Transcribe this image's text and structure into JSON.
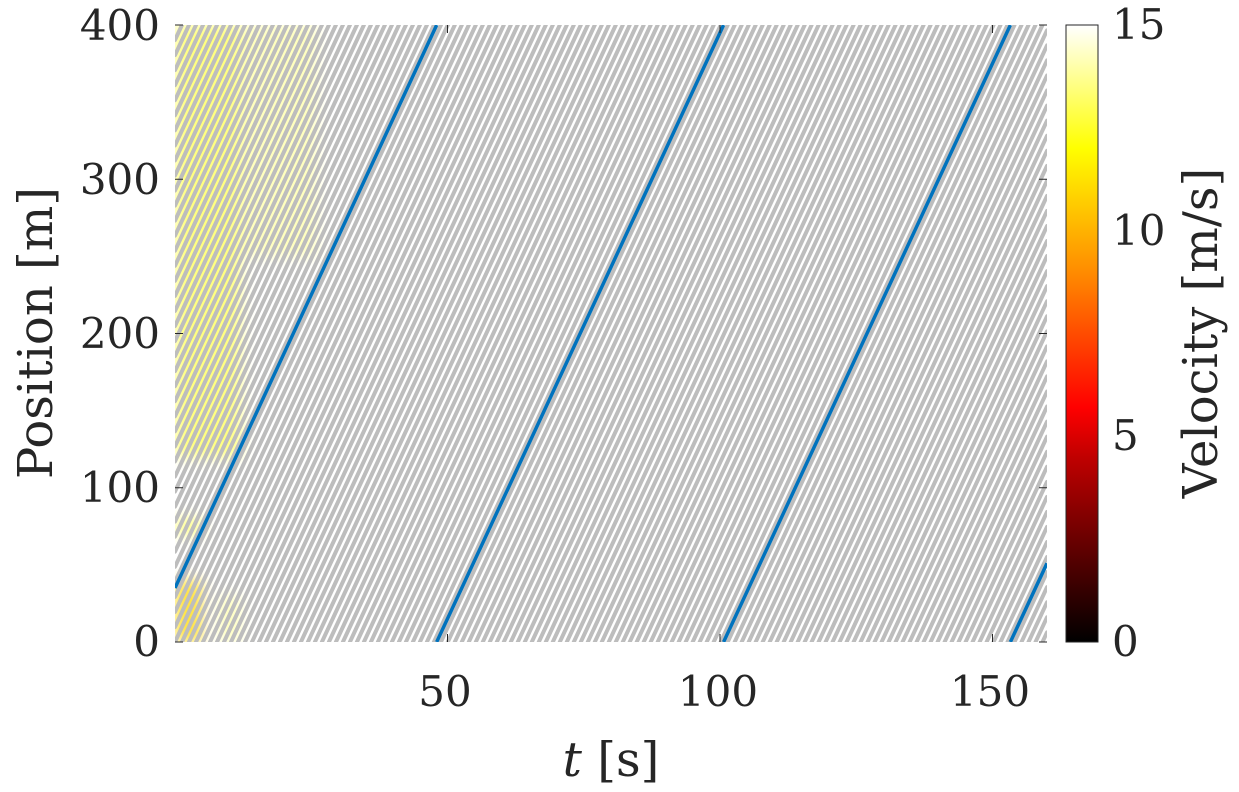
{
  "chart_data": {
    "type": "line",
    "xlabel": {
      "var": "t",
      "unit": "[s]"
    },
    "ylabel": "Position [m]",
    "xlim": [
      0,
      160
    ],
    "ylim": [
      0,
      400
    ],
    "xticks": [
      "50",
      "100",
      "150"
    ],
    "yticks": [
      "0",
      "100",
      "200",
      "300",
      "400"
    ],
    "colorbar": {
      "label": "Velocity [m/s]",
      "range": [
        0,
        15
      ],
      "ticks": [
        "0",
        "5",
        "10",
        "15"
      ],
      "colormap": "hot"
    },
    "road_length_m": 400,
    "vehicle_trajectories": {
      "count": 41,
      "color": "#bdbdbd",
      "speed": 7.6
    },
    "highlighted_vehicle": {
      "color": "#0072bd",
      "speed": 7.6,
      "start_position": 35
    },
    "high_velocity_regions": [
      {
        "t": [
          0,
          5
        ],
        "position": [
          0,
          40
        ],
        "velocity": 11
      },
      {
        "t": [
          0,
          5
        ],
        "position": [
          70,
          80
        ],
        "velocity": 13
      },
      {
        "t": [
          0,
          12
        ],
        "position": [
          120,
          400
        ],
        "velocity": 13
      },
      {
        "t": [
          12,
          26
        ],
        "position": [
          250,
          400
        ],
        "velocity": 14
      },
      {
        "t": [
          8,
          12
        ],
        "position": [
          0,
          30
        ],
        "velocity": 14
      }
    ]
  }
}
